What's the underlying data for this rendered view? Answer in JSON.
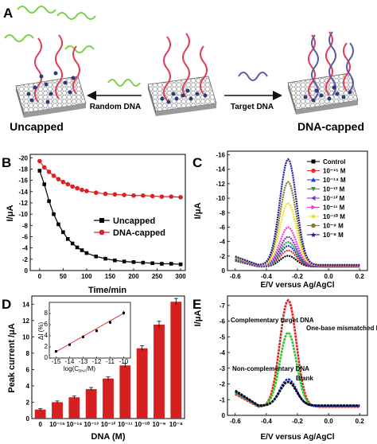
{
  "panel_a": {
    "letter": "A",
    "left_label": "Uncapped",
    "right_label": "DNA-capped",
    "arrow_left_label": "Random DNA",
    "arrow_right_label": "Target DNA",
    "colors": {
      "random_dna": "#7ed04a",
      "target_dna": "#5a5aa6",
      "probe_dna": "#e23b5a",
      "bead": "#2a3a78"
    }
  },
  "chart_data": [
    {
      "panel": "B",
      "type": "line",
      "xlabel": "Time/min",
      "ylabel": "I/μA",
      "xlim": [
        -20,
        310
      ],
      "ylim": [
        -20.6,
        0
      ],
      "xticks": [
        0,
        50,
        100,
        150,
        200,
        250,
        300
      ],
      "yticks": [
        -20,
        -18,
        -16,
        -14,
        -12,
        -10,
        -8,
        -6,
        -4,
        -2,
        0
      ],
      "legend_position": "bottom-right",
      "series": [
        {
          "name": "Uncapped",
          "color": "#000000",
          "marker": "square",
          "x": [
            0,
            10,
            20,
            30,
            40,
            50,
            60,
            70,
            80,
            90,
            100,
            120,
            140,
            160,
            180,
            200,
            220,
            240,
            260,
            280,
            300
          ],
          "y": [
            -17.7,
            -15.3,
            -12.3,
            -10.0,
            -8.2,
            -6.8,
            -5.6,
            -4.8,
            -4.1,
            -3.6,
            -3.1,
            -2.5,
            -2.1,
            -1.8,
            -1.6,
            -1.5,
            -1.4,
            -1.3,
            -1.2,
            -1.2,
            -1.1
          ]
        },
        {
          "name": "DNA-capped",
          "color": "#e02020",
          "marker": "circle",
          "x": [
            0,
            10,
            20,
            30,
            40,
            50,
            60,
            70,
            80,
            90,
            100,
            120,
            140,
            160,
            180,
            200,
            220,
            240,
            260,
            280,
            300
          ],
          "y": [
            -19.4,
            -18.3,
            -17.5,
            -16.8,
            -16.2,
            -15.7,
            -15.3,
            -14.9,
            -14.6,
            -14.3,
            -14.1,
            -13.8,
            -13.6,
            -13.5,
            -13.4,
            -13.3,
            -13.3,
            -13.2,
            -13.1,
            -13.1,
            -13.0
          ]
        }
      ]
    },
    {
      "panel": "C",
      "type": "line",
      "xlabel": "E/V versus Ag/AgCl",
      "ylabel": "I/μA",
      "xlim": [
        -0.65,
        0.25
      ],
      "ylim": [
        0,
        -16.5
      ],
      "xticks": [
        "-0.6",
        "-0.4",
        "-0.2",
        "0.0",
        "0.2"
      ],
      "yticks": [
        "0",
        "-2",
        "-4",
        "-6",
        "-8",
        "-10",
        "-12",
        "-14",
        "-16"
      ],
      "legend_position": "top-right",
      "peak_x": -0.26,
      "series": [
        {
          "name": "Control",
          "color": "#000000",
          "peak": 1.5
        },
        {
          "name": "10⁻¹⁵ M",
          "color": "#e53030",
          "peak": 2.2
        },
        {
          "name": "10⁻¹⁴ M",
          "color": "#1a3fd6",
          "peak": 2.8
        },
        {
          "name": "10⁻¹³ M",
          "color": "#21a52a",
          "peak": 3.3
        },
        {
          "name": "10⁻¹² M",
          "color": "#7a2fd0",
          "peak": 4.0
        },
        {
          "name": "10⁻¹¹ M",
          "color": "#f03cc8",
          "peak": 5.3
        },
        {
          "name": "10⁻¹⁰ M",
          "color": "#f2e02a",
          "peak": 8.6
        },
        {
          "name": "10⁻⁹ M",
          "color": "#8a7a20",
          "peak": 11.5
        },
        {
          "name": "10⁻⁸ M",
          "color": "#1a1a9a",
          "peak": 14.6
        }
      ]
    },
    {
      "panel": "D",
      "type": "bar",
      "xlabel": "DNA (M)",
      "ylabel": "Peak current /μA",
      "ylim": [
        0,
        15
      ],
      "yticks": [
        0,
        2,
        4,
        6,
        8,
        10,
        12,
        14
      ],
      "categories": [
        "0",
        "10⁻¹⁵",
        "10⁻¹⁴",
        "10⁻¹³",
        "10⁻¹²",
        "10⁻¹¹",
        "10⁻¹⁰",
        "10⁻⁹",
        "10⁻⁸"
      ],
      "values": [
        1.1,
        2.0,
        2.6,
        3.6,
        4.9,
        6.5,
        8.6,
        11.5,
        14.3
      ],
      "errors": [
        0.1,
        0.15,
        0.15,
        0.2,
        0.2,
        0.25,
        0.3,
        0.4,
        0.4
      ],
      "color": "#d42020",
      "inset": {
        "type": "scatter",
        "xlabel": "log(C",
        "xlabel_sub": "DNA",
        "xlabel_end": "/M)",
        "ylabel": "ΔI (%)",
        "xlim": [
          -15.5,
          -9.5
        ],
        "ylim": [
          0,
          10
        ],
        "xticks": [
          "-15",
          "-14",
          "-13",
          "-12",
          "-11",
          "-10"
        ],
        "yticks": [
          "0",
          "2",
          "4",
          "6",
          "8"
        ],
        "x": [
          -15,
          -14,
          -13,
          -12,
          -11,
          -10
        ],
        "y": [
          1.2,
          2.4,
          3.8,
          4.9,
          6.4,
          8.1
        ],
        "errors": [
          0.2,
          0.2,
          0.25,
          0.25,
          0.3,
          0.4
        ],
        "fit_color": "#e02020"
      }
    },
    {
      "panel": "E",
      "type": "line",
      "xlabel": "E/V versus Ag/AgCl",
      "ylabel": "I/μA",
      "xlim": [
        -0.65,
        0.25
      ],
      "ylim": [
        0,
        -7.6
      ],
      "xticks": [
        "-0.6",
        "-0.4",
        "-0.2",
        "0.0",
        "0.2"
      ],
      "yticks": [
        "0",
        "-1",
        "-2",
        "-3",
        "-4",
        "-5",
        "-6",
        "-7"
      ],
      "peak_x": -0.26,
      "series": [
        {
          "name": "Complementary target DNA",
          "color": "#e02020",
          "peak": 6.8
        },
        {
          "name": "One-base mismatched DNA",
          "color": "#22cc22",
          "peak": 4.7
        },
        {
          "name": "Non-complementary DNA",
          "color": "#2233cc",
          "peak": 1.7
        },
        {
          "name": "Blank",
          "color": "#000000",
          "peak": 1.5
        }
      ]
    }
  ]
}
